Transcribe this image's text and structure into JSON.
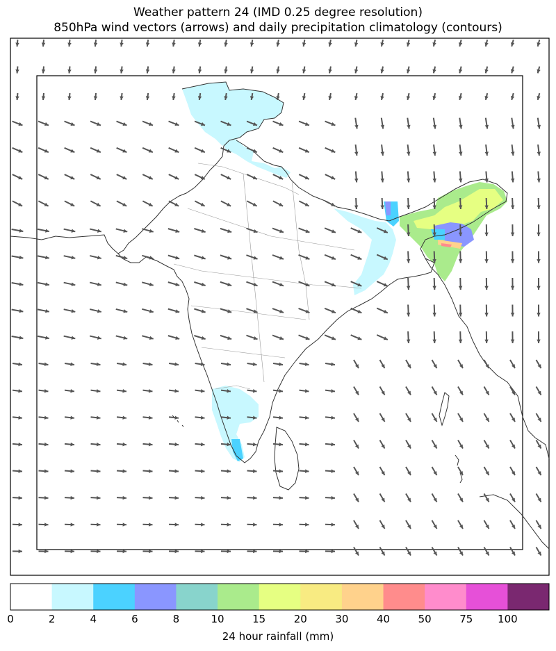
{
  "title_line1": "Weather pattern 24 (IMD 0.25 degree resolution)",
  "title_line2": "850hPa wind vectors (arrows) and daily precipitation climatology (contours)",
  "colorbar": {
    "label": "24 hour rainfall (mm)",
    "ticks": [
      "0",
      "2",
      "4",
      "6",
      "8",
      "10",
      "15",
      "20",
      "30",
      "40",
      "50",
      "75",
      "100"
    ],
    "colors": [
      "#ffffff",
      "#c8f8ff",
      "#4bd2ff",
      "#8a96ff",
      "#88d4cc",
      "#aaeb8c",
      "#e6ff82",
      "#f8eb82",
      "#ffd28c",
      "#ff8c8c",
      "#ff8ccc",
      "#e650d8",
      "#7a2870"
    ]
  },
  "wind_color": "#555555",
  "coast_color": "#333333",
  "boundary_color": "#999999"
}
